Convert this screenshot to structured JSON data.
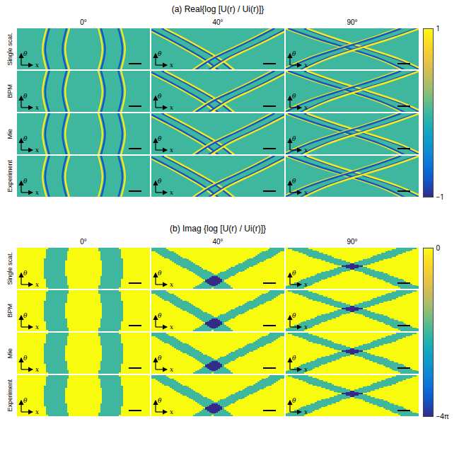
{
  "chart_data": [
    {
      "type": "heatmap_grid",
      "title": "(a) Real{log [U(r) / Ui(r)]}",
      "rows": [
        "Single scat.",
        "BPM",
        "Mie",
        "Experiment"
      ],
      "columns": [
        "0°",
        "40°",
        "90°"
      ],
      "x_label": "x",
      "y_label": "θ",
      "xlim": [
        0,
        1
      ],
      "ylim": [
        0,
        1
      ],
      "tick_labels": false,
      "theta": [
        0,
        0.25,
        0.5,
        0.75,
        1
      ],
      "background": 0,
      "panels": [
        {
          "curves": [
            {
              "x": [
                0.22,
                0.2,
                0.19,
                0.2,
                0.22
              ],
              "value": 0.9
            },
            {
              "x": [
                0.24,
                0.22,
                0.21,
                0.22,
                0.24
              ],
              "value": -0.8
            },
            {
              "x": [
                0.37,
                0.35,
                0.34,
                0.35,
                0.37
              ],
              "value": -0.8
            },
            {
              "x": [
                0.39,
                0.37,
                0.36,
                0.37,
                0.39
              ],
              "value": 0.9
            },
            {
              "x": [
                0.61,
                0.63,
                0.64,
                0.63,
                0.61
              ],
              "value": 0.9
            },
            {
              "x": [
                0.63,
                0.65,
                0.66,
                0.65,
                0.63
              ],
              "value": -0.8
            },
            {
              "x": [
                0.76,
                0.78,
                0.79,
                0.78,
                0.76
              ],
              "value": -0.8
            },
            {
              "x": [
                0.78,
                0.8,
                0.81,
                0.8,
                0.78
              ],
              "value": 0.9
            }
          ]
        },
        {
          "curves": [
            {
              "x": [
                0.48,
                0.38,
                0.25,
                0.11,
                -0.04
              ],
              "value": 0.9
            },
            {
              "x": [
                0.5,
                0.4,
                0.27,
                0.13,
                -0.02
              ],
              "value": -0.8
            },
            {
              "x": [
                0.6,
                0.5,
                0.37,
                0.23,
                0.08
              ],
              "value": -0.8
            },
            {
              "x": [
                0.62,
                0.52,
                0.39,
                0.25,
                0.1
              ],
              "value": 0.9
            },
            {
              "x": [
                0.31,
                0.43,
                0.59,
                0.75,
                0.9
              ],
              "value": 0.9
            },
            {
              "x": [
                0.33,
                0.45,
                0.61,
                0.77,
                0.92
              ],
              "value": -0.8
            },
            {
              "x": [
                0.43,
                0.55,
                0.71,
                0.87,
                1.02
              ],
              "value": -0.8
            },
            {
              "x": [
                0.45,
                0.57,
                0.73,
                0.89,
                1.04
              ],
              "value": 0.9
            }
          ]
        },
        {
          "curves": [
            {
              "x": [
                0.87,
                0.7,
                0.47,
                0.22,
                0.0
              ],
              "value": 0.9
            },
            {
              "x": [
                0.89,
                0.72,
                0.49,
                0.24,
                0.02
              ],
              "value": -0.8
            },
            {
              "x": [
                1.01,
                0.84,
                0.61,
                0.36,
                0.14
              ],
              "value": -0.8
            },
            {
              "x": [
                1.03,
                0.86,
                0.63,
                0.38,
                0.16
              ],
              "value": 0.9
            },
            {
              "x": [
                -0.03,
                0.14,
                0.37,
                0.62,
                0.84
              ],
              "value": 0.9
            },
            {
              "x": [
                -0.01,
                0.16,
                0.39,
                0.64,
                0.86
              ],
              "value": -0.8
            },
            {
              "x": [
                0.11,
                0.28,
                0.51,
                0.76,
                0.98
              ],
              "value": -0.8
            },
            {
              "x": [
                0.13,
                0.3,
                0.53,
                0.78,
                1.0
              ],
              "value": 0.9
            }
          ]
        }
      ],
      "colorbar": {
        "range": [
          -1,
          1
        ],
        "ticks": [
          1,
          {
            "value": -1,
            "label": "−1"
          }
        ]
      }
    },
    {
      "type": "heatmap_grid",
      "title": "(b) Imag {log [U(r) / Ui(r)]}",
      "rows": [
        "Single scat.",
        "BPM",
        "Mie",
        "Experiment"
      ],
      "columns": [
        "0°",
        "40°",
        "90°"
      ],
      "x_label": "x",
      "y_label": "θ",
      "xlim": [
        0,
        1
      ],
      "ylim": [
        0,
        1
      ],
      "tick_labels": false,
      "theta": [
        0,
        0.25,
        0.5,
        0.75,
        1
      ],
      "background": 0,
      "panels": [
        {
          "bands": [
            {
              "x": [
                0.31,
                0.29,
                0.28,
                0.29,
                0.31
              ],
              "width": 0.16,
              "value": -6.283
            },
            {
              "x": [
                0.69,
                0.71,
                0.72,
                0.71,
                0.69
              ],
              "width": 0.16,
              "value": -6.283
            }
          ]
        },
        {
          "bands": [
            {
              "x": [
                0.55,
                0.45,
                0.32,
                0.18,
                0.03
              ],
              "width": 0.14,
              "value": -6.283
            },
            {
              "x": [
                0.38,
                0.5,
                0.66,
                0.82,
                0.97
              ],
              "width": 0.14,
              "value": -6.283
            }
          ]
        },
        {
          "bands": [
            {
              "x": [
                0.95,
                0.78,
                0.55,
                0.3,
                0.08
              ],
              "width": 0.16,
              "value": -6.283
            },
            {
              "x": [
                0.05,
                0.22,
                0.45,
                0.7,
                0.92
              ],
              "width": 0.16,
              "value": -6.283
            }
          ]
        }
      ],
      "colorbar": {
        "range": [
          -12.566,
          0
        ],
        "ticks": [
          0,
          {
            "value": -12.566,
            "label": "−4π"
          }
        ]
      }
    }
  ]
}
